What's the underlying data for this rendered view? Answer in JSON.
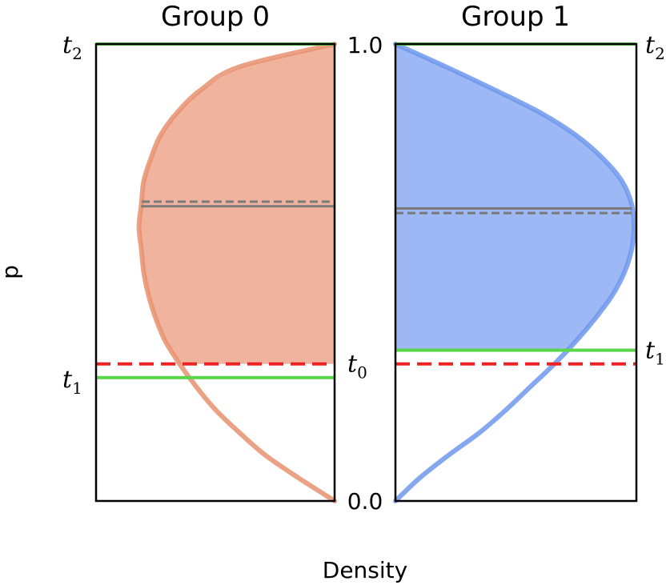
{
  "chart_data": {
    "type": "area",
    "ylabel": "p",
    "xlabel": "Density",
    "ylim": [
      0,
      1
    ],
    "y_ticks": [
      "0.0",
      "1.0"
    ],
    "panels": [
      {
        "title": "Group 0",
        "fill_color": "#f0b49e",
        "line_color": "#e8906f",
        "orientation": "right-anchored",
        "density_curve": {
          "y": [
            0.0,
            0.05,
            0.1,
            0.15,
            0.2,
            0.25,
            0.3,
            0.35,
            0.4,
            0.45,
            0.5,
            0.55,
            0.6,
            0.65,
            0.7,
            0.75,
            0.8,
            0.85,
            0.9,
            0.95,
            1.0
          ],
          "density": [
            0.0,
            0.15,
            0.29,
            0.4,
            0.5,
            0.58,
            0.65,
            0.71,
            0.75,
            0.78,
            0.8,
            0.81,
            0.82,
            0.81,
            0.8,
            0.77,
            0.73,
            0.66,
            0.56,
            0.4,
            0.0
          ]
        },
        "shaded_range": [
          0.3,
          1.0
        ],
        "mean_solid": 0.645,
        "mean_dashed": 0.655,
        "thresholds": [
          {
            "name": "t",
            "sub": "2",
            "value": 1.0,
            "color": "#5ad64a",
            "style": "solid",
            "label_side": "left"
          },
          {
            "name": "t",
            "sub": "1",
            "value": 0.27,
            "color": "#5ad64a",
            "style": "solid",
            "label_side": "left"
          },
          {
            "name": "t",
            "sub": "0",
            "value": 0.3,
            "color": "#ee2222",
            "style": "dashed",
            "label_side": "right"
          }
        ]
      },
      {
        "title": "Group 1",
        "fill_color": "#9db8f5",
        "line_color": "#6f98ec",
        "orientation": "left-anchored",
        "density_curve": {
          "y": [
            0.0,
            0.05,
            0.1,
            0.15,
            0.2,
            0.25,
            0.3,
            0.35,
            0.4,
            0.45,
            0.5,
            0.55,
            0.6,
            0.65,
            0.7,
            0.75,
            0.8,
            0.85,
            0.9,
            0.95,
            1.0
          ],
          "density": [
            0.0,
            0.1,
            0.22,
            0.35,
            0.46,
            0.56,
            0.66,
            0.75,
            0.83,
            0.9,
            0.95,
            0.98,
            0.99,
            0.98,
            0.94,
            0.86,
            0.75,
            0.6,
            0.41,
            0.21,
            0.0
          ]
        },
        "shaded_range": [
          0.33,
          1.0
        ],
        "mean_solid": 0.64,
        "mean_dashed": 0.63,
        "thresholds": [
          {
            "name": "t",
            "sub": "2",
            "value": 1.0,
            "color": "#5ad64a",
            "style": "solid",
            "label_side": "right"
          },
          {
            "name": "t",
            "sub": "1",
            "value": 0.33,
            "color": "#5ad64a",
            "style": "solid",
            "label_side": "right"
          },
          {
            "name": "t",
            "sub": "0",
            "value": 0.3,
            "color": "#ee2222",
            "style": "dashed",
            "label_side": "none"
          }
        ]
      }
    ]
  }
}
